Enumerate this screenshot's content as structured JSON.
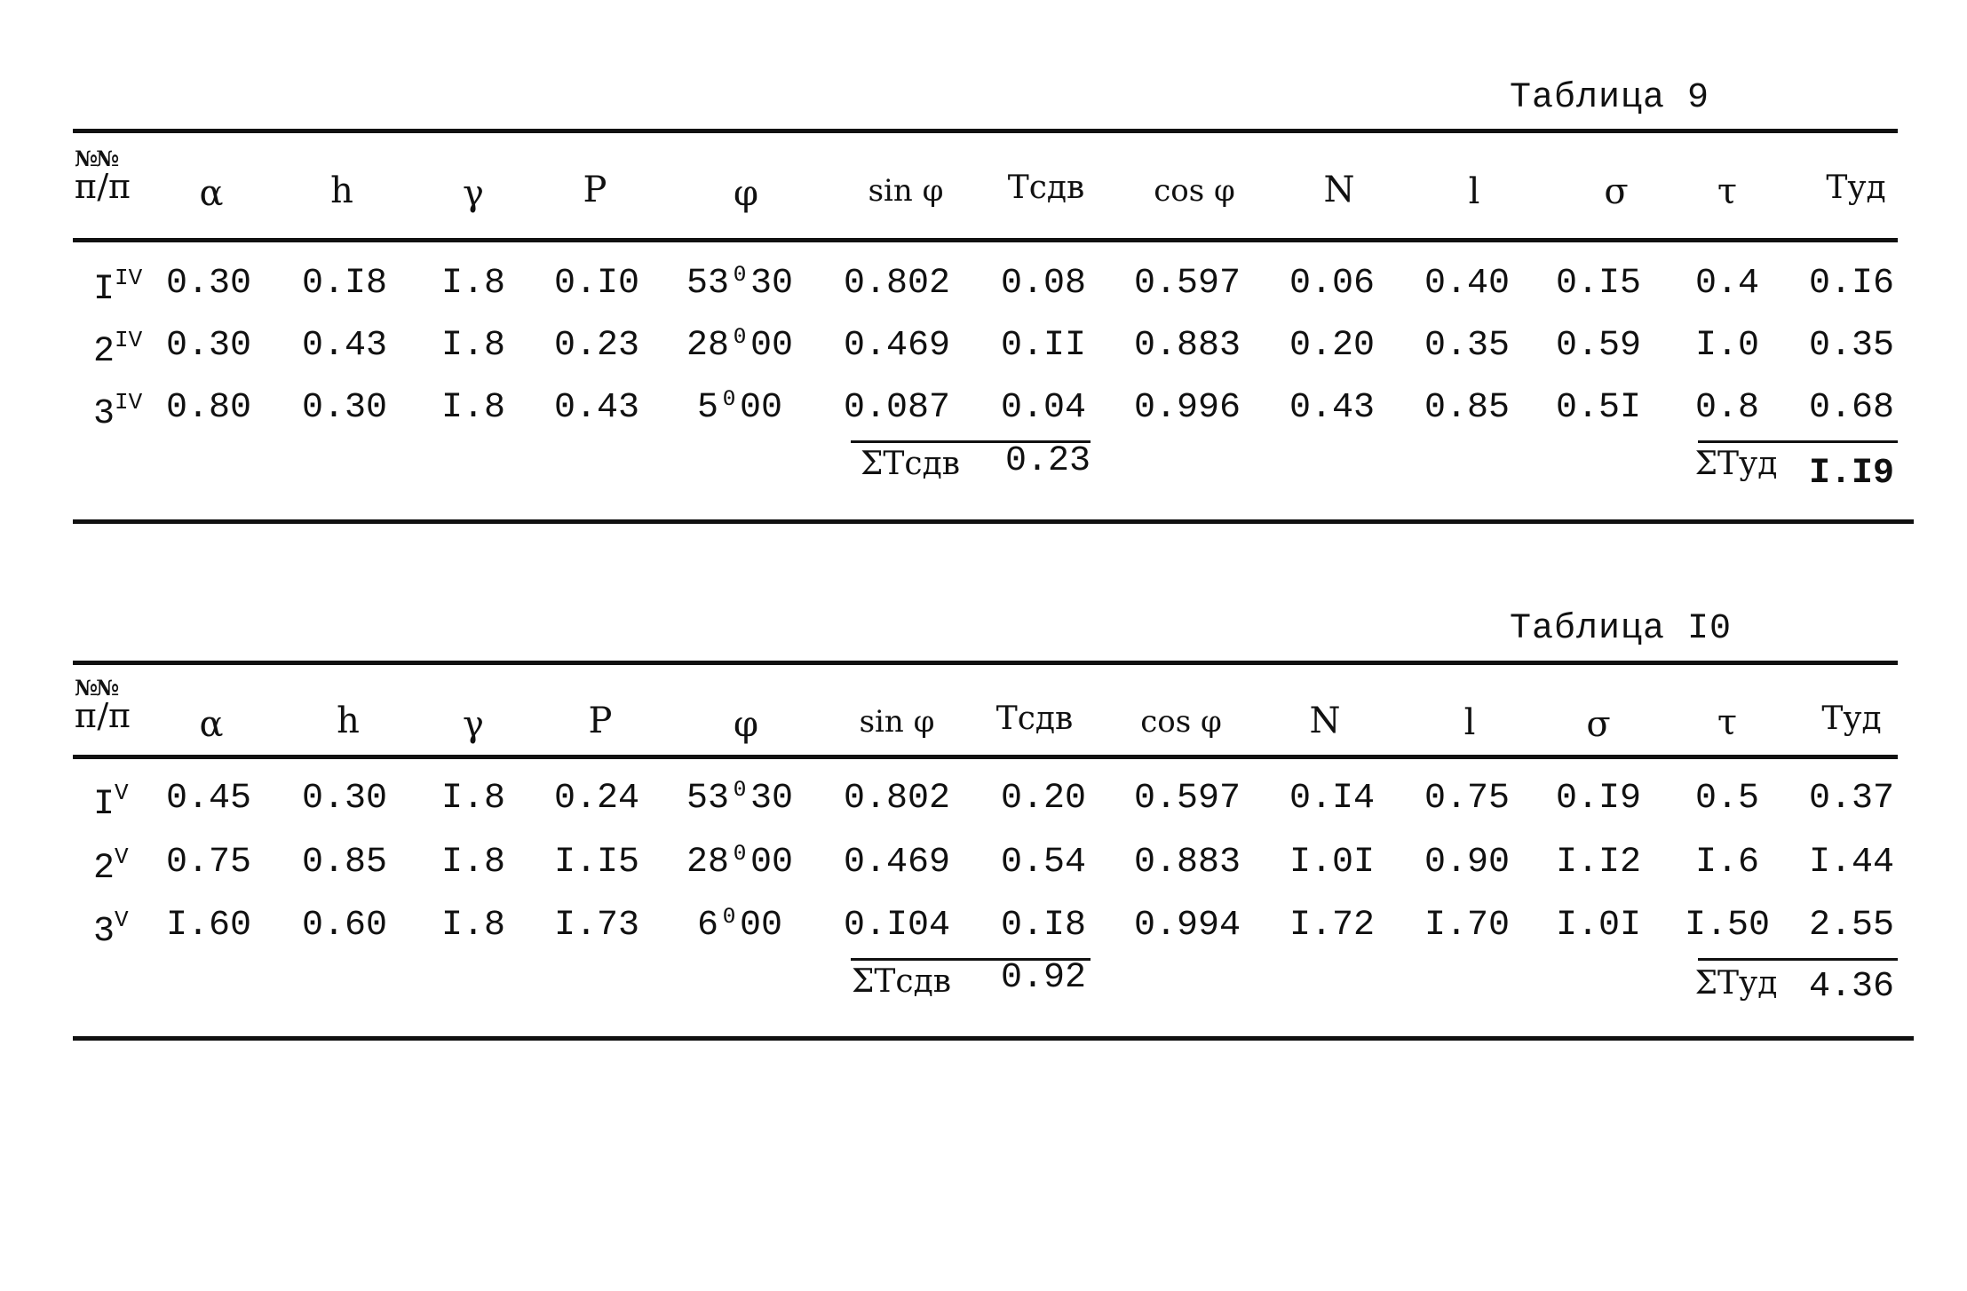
{
  "tables": [
    {
      "title": "Таблица 9",
      "header": {
        "num": "№№",
        "pp": "п/п",
        "cols": [
          "α",
          "h",
          "γ",
          "P",
          "φ",
          "sin φ",
          "Tсдв",
          "cos φ",
          "N",
          "l",
          "σ",
          "τ",
          "Tуд"
        ]
      },
      "rows": [
        {
          "label": "I",
          "mark": "IV",
          "cells": [
            "0.30",
            "0.I8",
            "I.8",
            "0.I0",
            "53⁰30",
            "0.802",
            "0.08",
            "0.597",
            "0.06",
            "0.40",
            "0.I5",
            "0.4",
            "0.I6"
          ]
        },
        {
          "label": "2",
          "mark": "IV",
          "cells": [
            "0.30",
            "0.43",
            "I.8",
            "0.23",
            "28⁰00",
            "0.469",
            "0.II",
            "0.883",
            "0.20",
            "0.35",
            "0.59",
            "I.0",
            "0.35"
          ]
        },
        {
          "label": "3",
          "mark": "IV",
          "cells": [
            "0.80",
            "0.30",
            "I.8",
            "0.43",
            "5⁰00",
            "0.087",
            "0.04",
            "0.996",
            "0.43",
            "0.85",
            "0.5I",
            "0.8",
            "0.68"
          ]
        }
      ],
      "sum_tsdv_label": "ΣTсдв",
      "sum_tsdv_value": "0.23",
      "sum_tud_label": "ΣTуд",
      "sum_tud_value": "I.I9"
    },
    {
      "title": "Таблица I0",
      "header": {
        "num": "№№",
        "pp": "п/п",
        "cols": [
          "α",
          "h",
          "γ",
          "P",
          "φ",
          "sin φ",
          "Tсдв",
          "cos φ",
          "N",
          "l",
          "σ",
          "τ",
          "Tуд"
        ]
      },
      "rows": [
        {
          "label": "I",
          "mark": "V",
          "cells": [
            "0.45",
            "0.30",
            "I.8",
            "0.24",
            "53⁰30",
            "0.802",
            "0.20",
            "0.597",
            "0.I4",
            "0.75",
            "0.I9",
            "0.5",
            "0.37"
          ]
        },
        {
          "label": "2",
          "mark": "V",
          "cells": [
            "0.75",
            "0.85",
            "I.8",
            "I.I5",
            "28⁰00",
            "0.469",
            "0.54",
            "0.883",
            "I.0I",
            "0.90",
            "I.I2",
            "I.6",
            "I.44"
          ]
        },
        {
          "label": "3",
          "mark": "V",
          "cells": [
            "I.60",
            "0.60",
            "I.8",
            "I.73",
            "6⁰00",
            "0.I04",
            "0.I8",
            "0.994",
            "I.72",
            "I.70",
            "I.0I",
            "I.50",
            "2.55"
          ]
        }
      ],
      "sum_tsdv_label": "ΣTсдв",
      "sum_tsdv_value": "0.92",
      "sum_tud_label": "ΣTуд",
      "sum_tud_value": "4.36"
    }
  ]
}
